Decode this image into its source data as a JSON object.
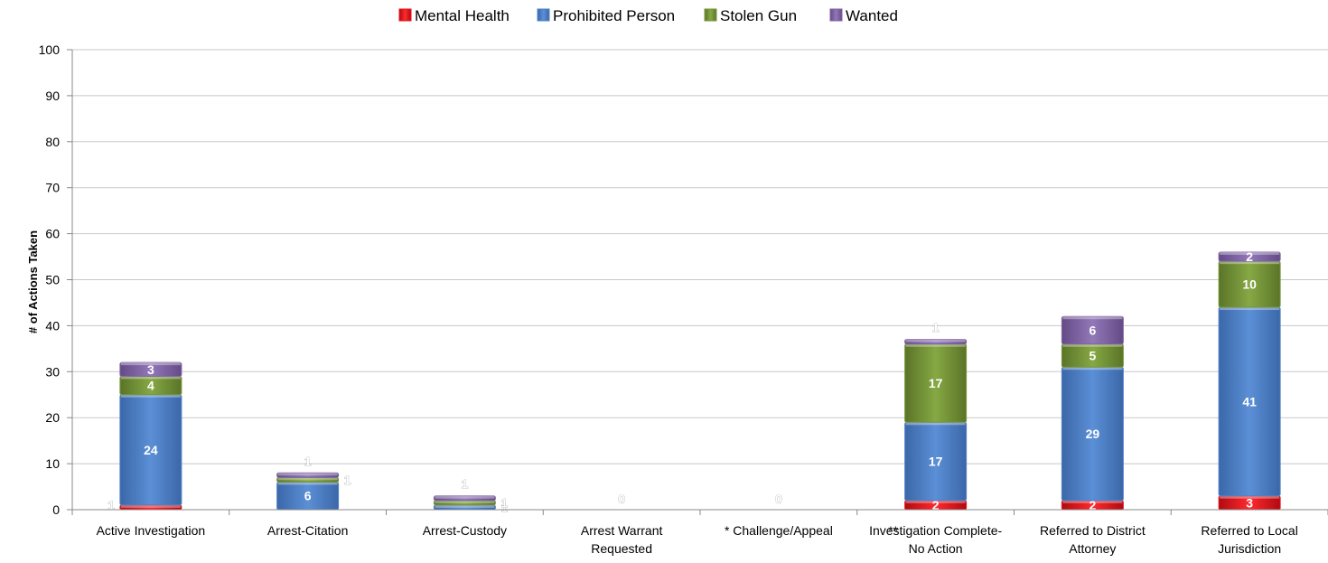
{
  "chart_data": {
    "type": "bar",
    "stacked": true,
    "title": "",
    "xlabel": "",
    "ylabel": "# of Actions Taken",
    "ylim": [
      0,
      100
    ],
    "yticks": [
      0,
      10,
      20,
      30,
      40,
      50,
      60,
      70,
      80,
      90,
      100
    ],
    "grid": true,
    "legend_position": "top",
    "categories": [
      [
        "Active Investigation"
      ],
      [
        "Arrest-Citation"
      ],
      [
        "Arrest-Custody"
      ],
      [
        "Arrest Warrant",
        "Requested"
      ],
      [
        "*  Challenge/Appeal"
      ],
      [
        "Investigation Complete-",
        "No Action"
      ],
      [
        "Referred to District",
        "Attorney"
      ],
      [
        "Referred to Local",
        "Jurisdiction"
      ]
    ],
    "overlay_text": [
      "**"
    ],
    "series": [
      {
        "name": "Mental Health",
        "color": "#e8141b",
        "values": [
          1,
          0,
          0,
          0,
          0,
          2,
          2,
          3
        ]
      },
      {
        "name": "Prohibited Person",
        "color": "#4f81c7",
        "values": [
          24,
          6,
          1,
          0,
          0,
          17,
          29,
          41
        ]
      },
      {
        "name": "Stolen Gun",
        "color": "#77963a",
        "values": [
          4,
          1,
          1,
          0,
          0,
          17,
          5,
          10
        ]
      },
      {
        "name": "Wanted",
        "color": "#8064a2",
        "values": [
          3,
          1,
          1,
          0,
          0,
          1,
          6,
          2
        ]
      }
    ],
    "zero_labels": [
      "0",
      "0"
    ]
  }
}
